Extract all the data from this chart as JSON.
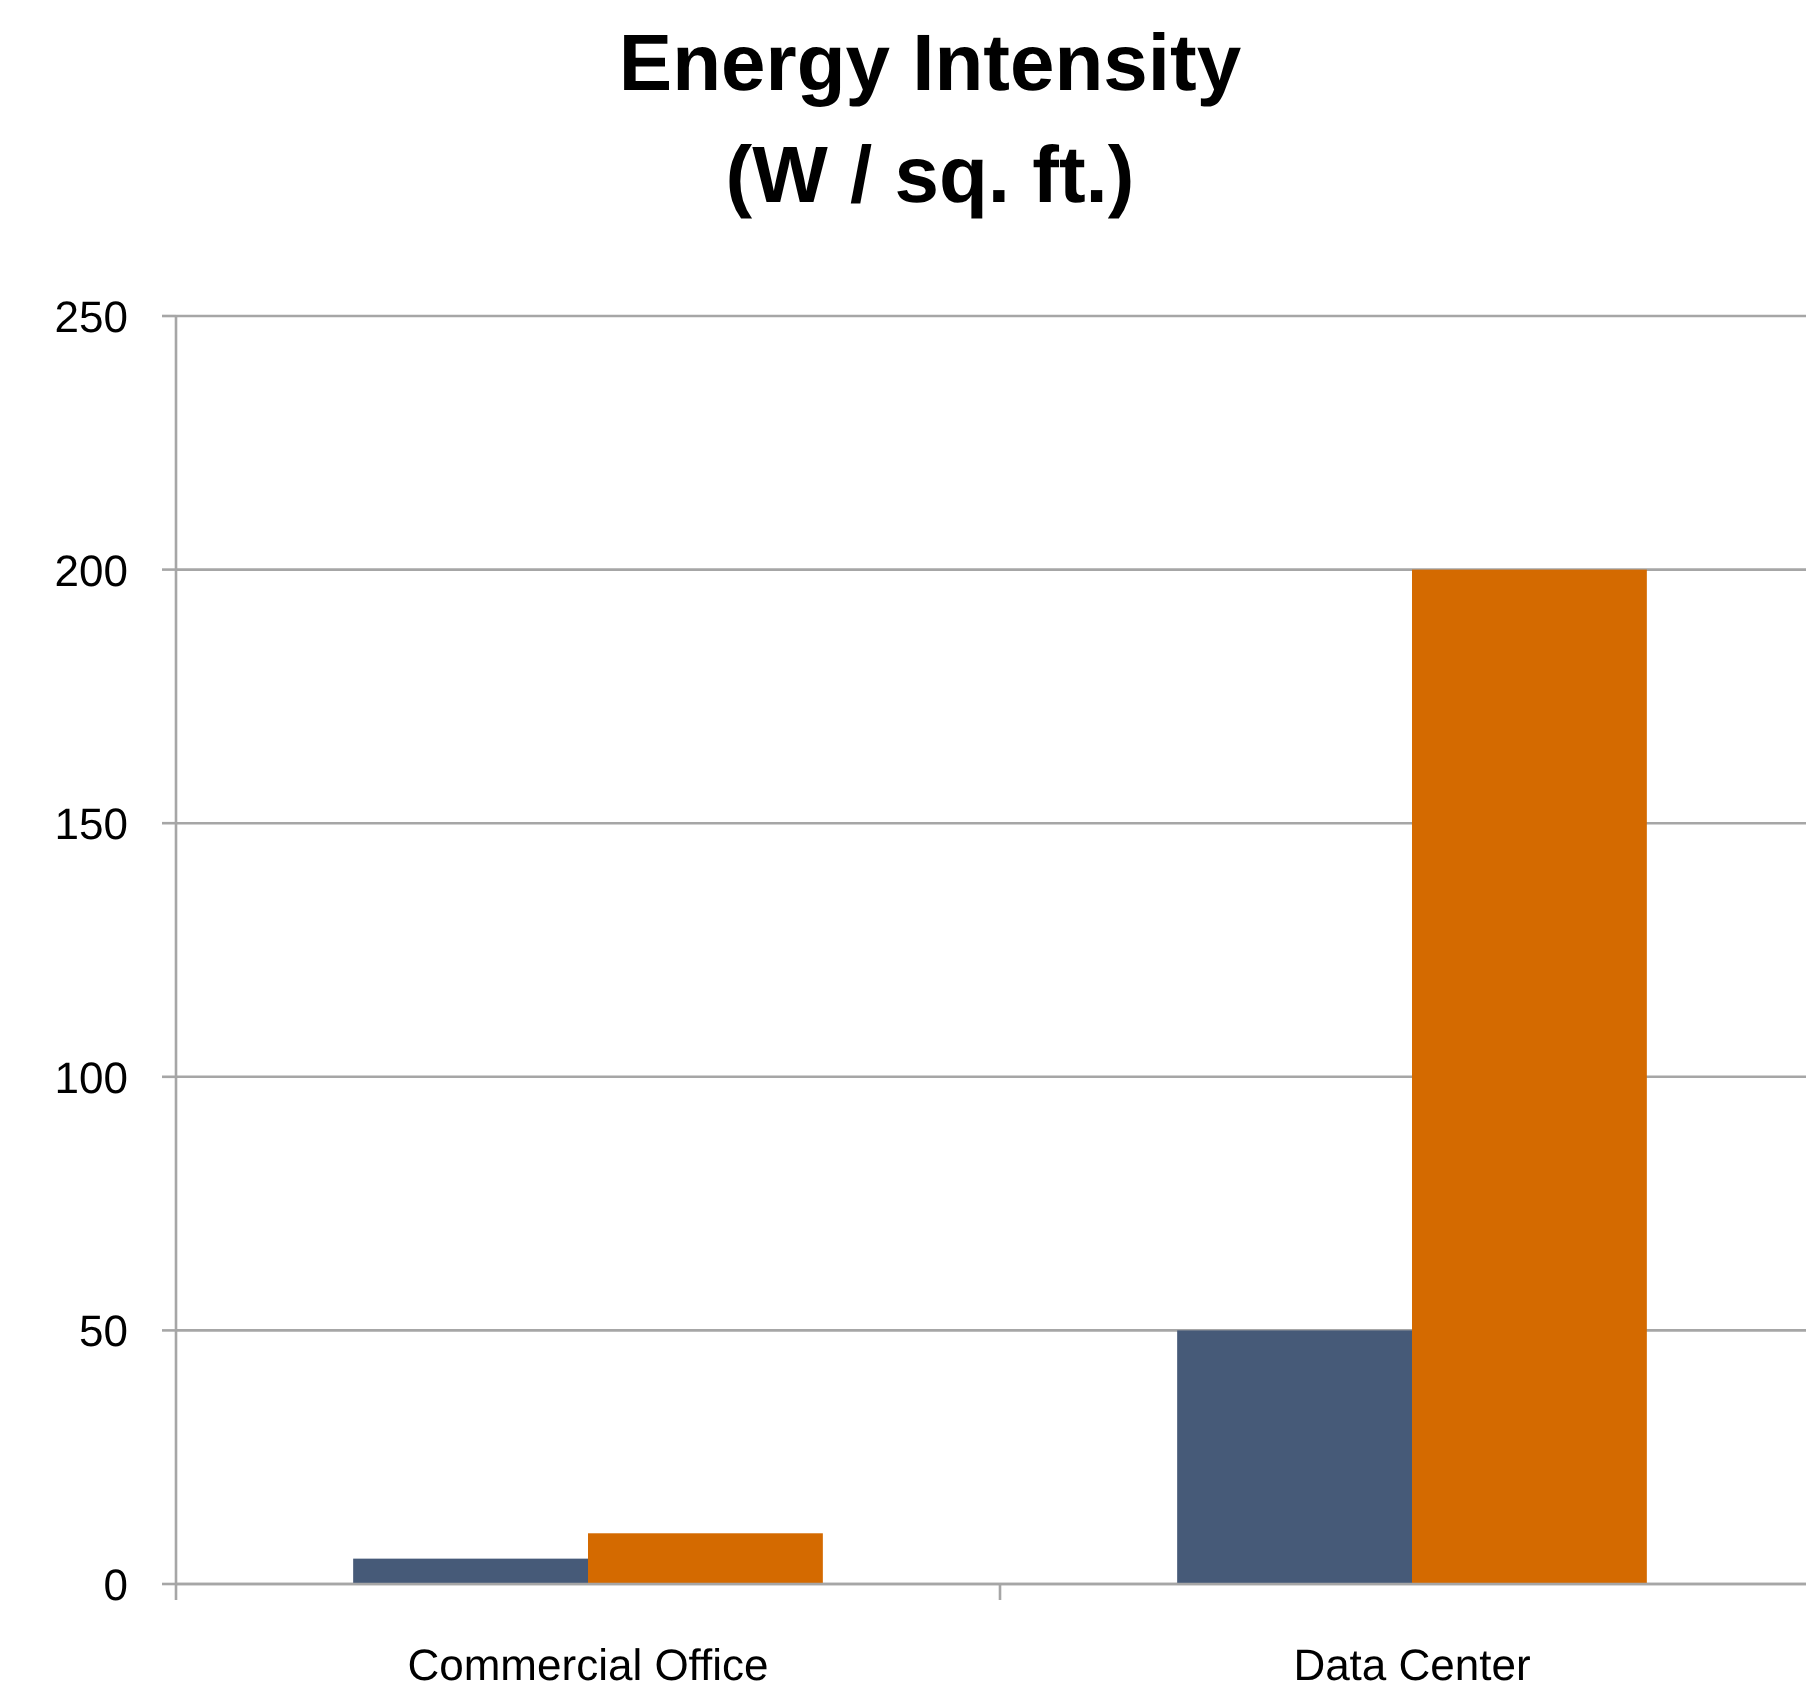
{
  "chart_data": {
    "type": "bar",
    "title": "Energy Intensity\n(W / sq. ft.)",
    "categories": [
      "Commercial Office",
      "Data Center"
    ],
    "series": [
      {
        "color": "#465a78",
        "values": [
          5,
          50
        ]
      },
      {
        "color": "#d46a00",
        "values": [
          10,
          200
        ]
      }
    ],
    "ylim": [
      0,
      250
    ],
    "yticks": [
      0,
      50,
      100,
      150,
      200,
      250
    ],
    "grid": "y"
  }
}
